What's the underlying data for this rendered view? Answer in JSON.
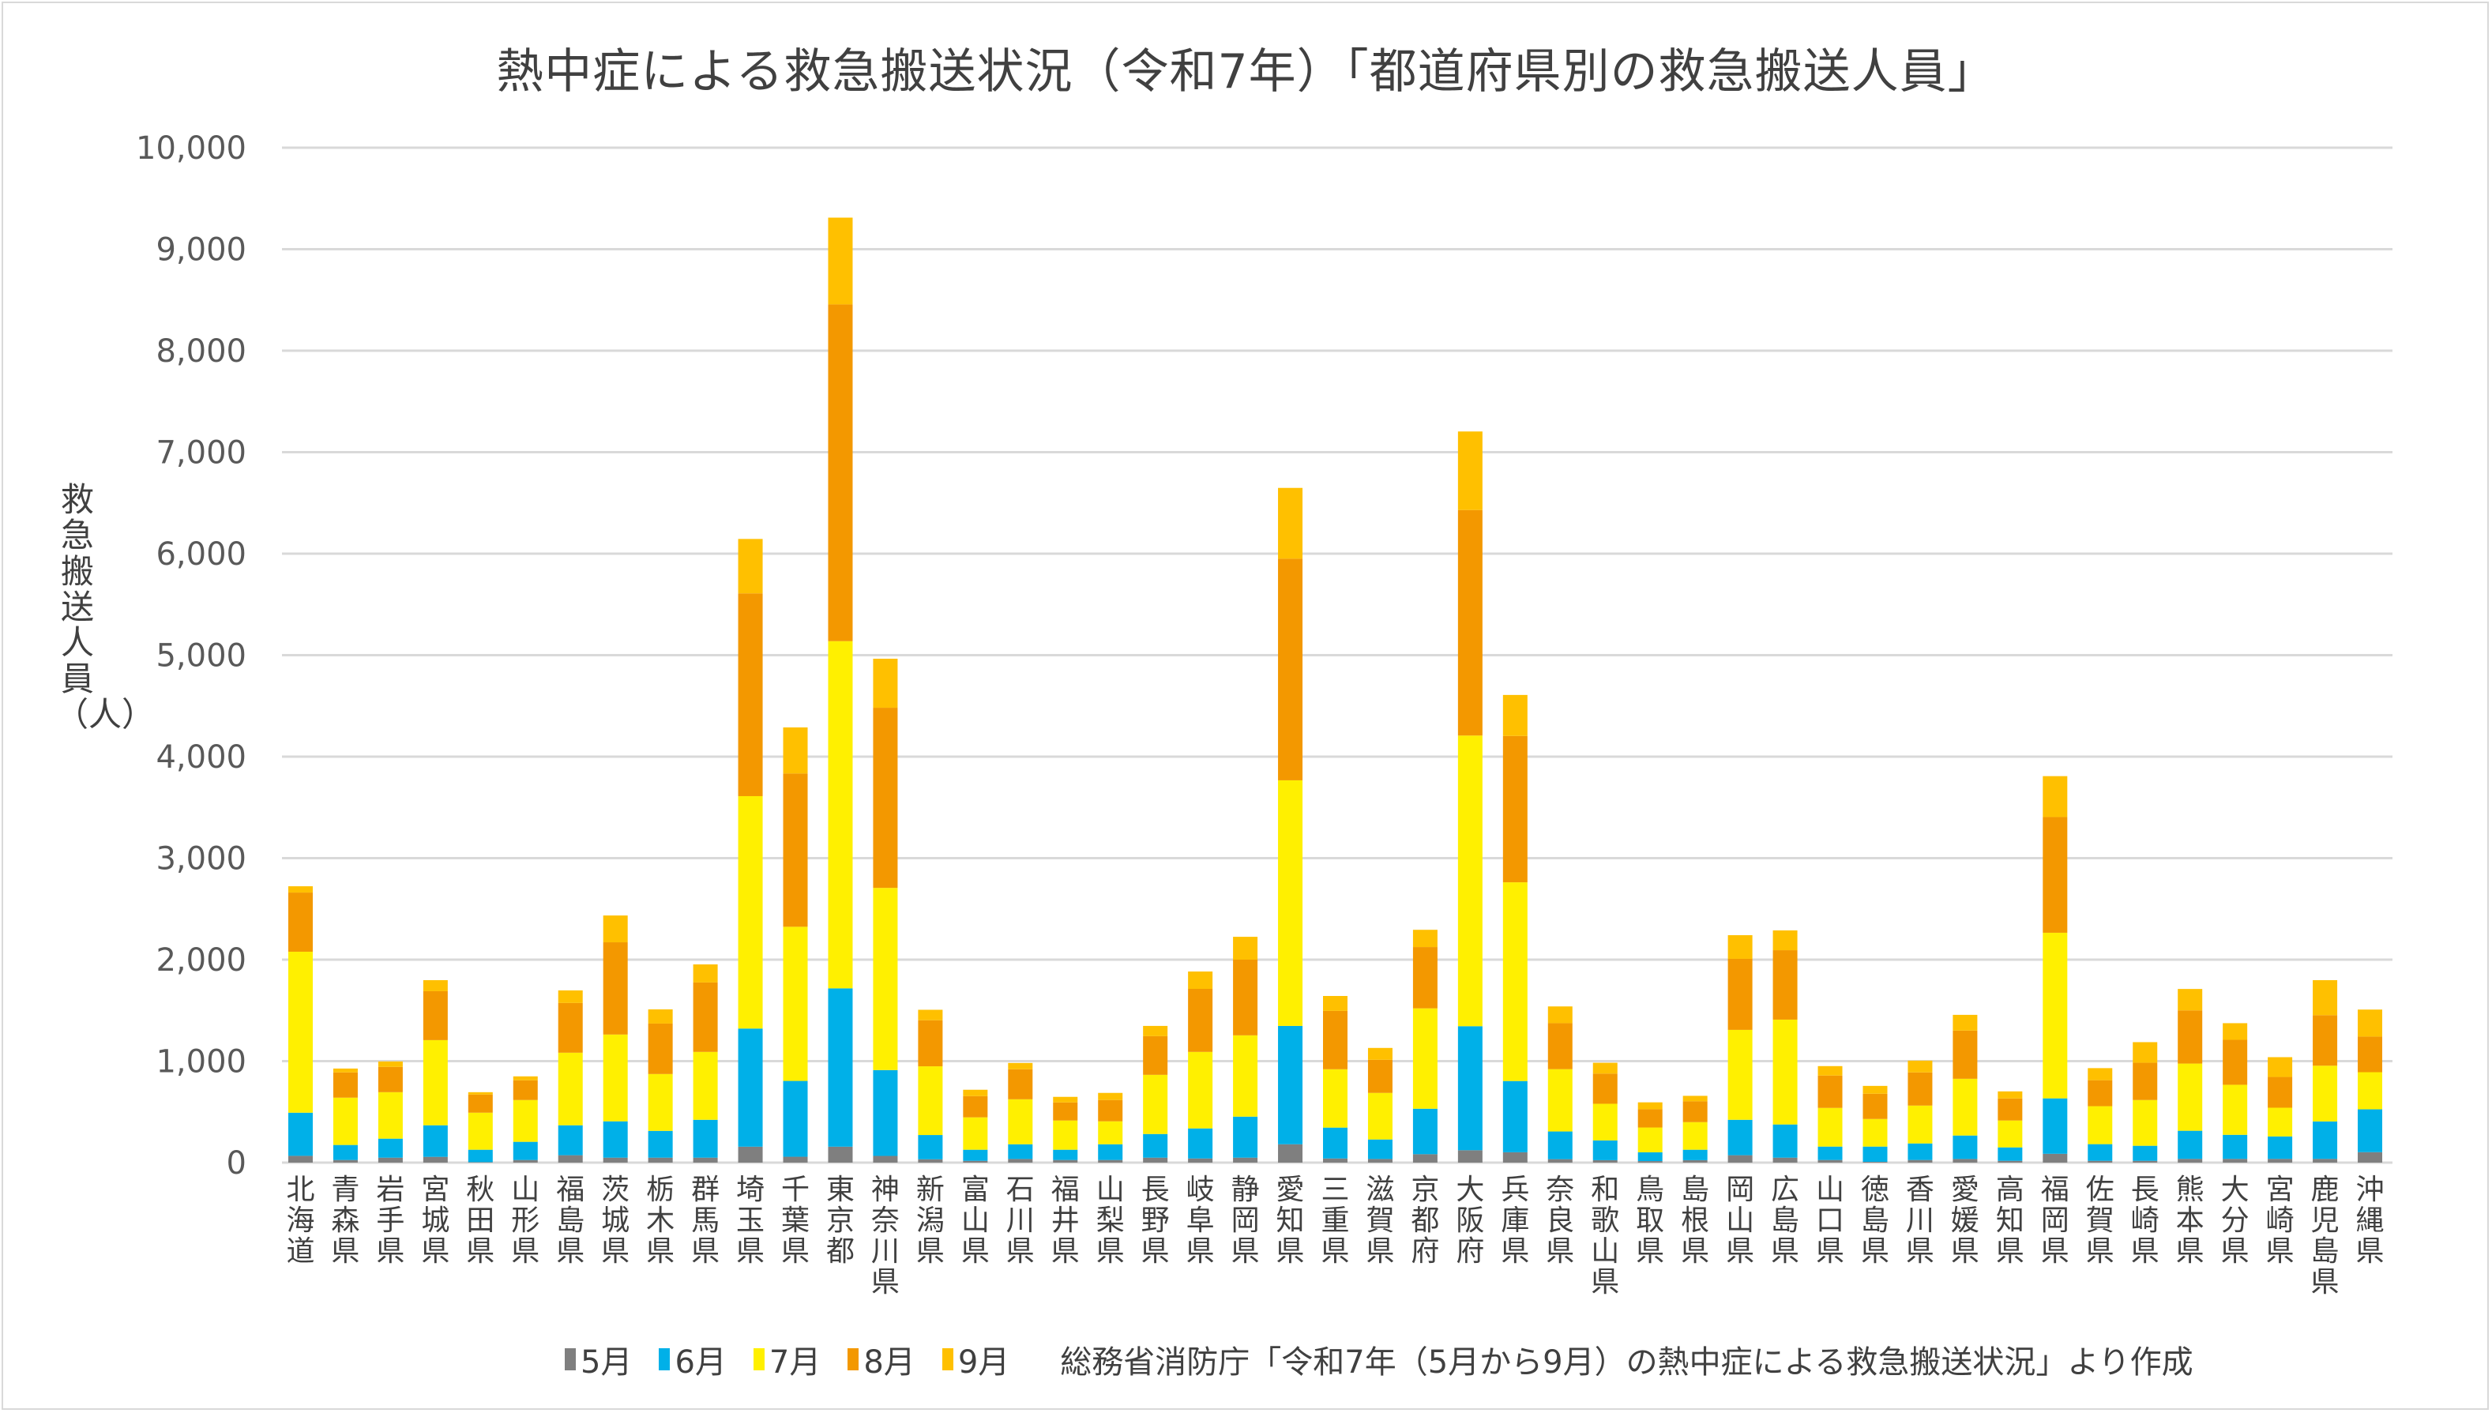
{
  "chart_data": {
    "type": "bar",
    "stacked": true,
    "title": "熱中症による救急搬送状況（令和7年）「都道府県別の救急搬送人員」",
    "ylabel": "救急搬送人員（人）",
    "xlabel": "",
    "ylim": [
      0,
      10000
    ],
    "yticks": [
      "0",
      "1,000",
      "2,000",
      "3,000",
      "4,000",
      "5,000",
      "6,000",
      "7,000",
      "8,000",
      "9,000",
      "10,000"
    ],
    "grid": true,
    "legend_position": "bottom",
    "source_note": "総務省消防庁「令和7年（5月から9月）の熱中症による救急搬送状況」より作成",
    "categories": [
      "北海道",
      "青森県",
      "岩手県",
      "宮城県",
      "秋田県",
      "山形県",
      "福島県",
      "茨城県",
      "栃木県",
      "群馬県",
      "埼玉県",
      "千葉県",
      "東京都",
      "神奈川県",
      "新潟県",
      "富山県",
      "石川県",
      "福井県",
      "山梨県",
      "長野県",
      "岐阜県",
      "静岡県",
      "愛知県",
      "三重県",
      "滋賀県",
      "京都府",
      "大阪府",
      "兵庫県",
      "奈良県",
      "和歌山県",
      "鳥取県",
      "島根県",
      "岡山県",
      "広島県",
      "山口県",
      "徳島県",
      "香川県",
      "愛媛県",
      "高知県",
      "福岡県",
      "佐賀県",
      "長崎県",
      "熊本県",
      "大分県",
      "宮崎県",
      "鹿児島県",
      "沖縄県"
    ],
    "series": [
      {
        "name": "5月",
        "color": "#7f7f7f",
        "values": [
          67,
          26,
          49,
          57,
          5,
          26,
          73,
          49,
          49,
          49,
          157,
          58,
          157,
          66,
          33,
          18,
          36,
          26,
          26,
          49,
          41,
          49,
          181,
          41,
          36,
          83,
          122,
          102,
          34,
          24,
          15,
          24,
          73,
          49,
          26,
          8,
          26,
          36,
          18,
          87,
          18,
          18,
          37,
          37,
          37,
          37,
          103
        ]
      },
      {
        "name": "6月",
        "color": "#00b0e8",
        "values": [
          425,
          148,
          187,
          311,
          122,
          179,
          295,
          358,
          264,
          373,
          1164,
          747,
          1560,
          846,
          239,
          109,
          145,
          101,
          155,
          233,
          296,
          404,
          1166,
          304,
          192,
          448,
          1222,
          702,
          273,
          195,
          87,
          103,
          349,
          327,
          132,
          150,
          163,
          231,
          132,
          546,
          164,
          148,
          277,
          237,
          221,
          369,
          422
        ]
      },
      {
        "name": "7月",
        "color": "#fff000",
        "values": [
          1586,
          466,
          458,
          839,
          365,
          412,
          715,
          855,
          560,
          669,
          2290,
          1519,
          3421,
          1795,
          677,
          319,
          443,
          288,
          226,
          583,
          754,
          801,
          2420,
          575,
          459,
          989,
          2864,
          1958,
          614,
          361,
          244,
          272,
          886,
          1033,
          381,
          272,
          373,
          559,
          265,
          1632,
          374,
          451,
          662,
          493,
          283,
          549,
          366
        ]
      },
      {
        "name": "8月",
        "color": "#f39800",
        "values": [
          583,
          249,
          249,
          482,
          179,
          194,
          490,
          909,
          497,
          684,
          1998,
          1510,
          3318,
          1775,
          454,
          209,
          296,
          178,
          210,
          381,
          621,
          746,
          2184,
          575,
          326,
          604,
          2222,
          1442,
          453,
          297,
          180,
          205,
          700,
          684,
          319,
          249,
          327,
          475,
          217,
          1140,
          256,
          367,
          524,
          443,
          303,
          498,
          351
        ]
      },
      {
        "name": "9月",
        "color": "#ffc000",
        "values": [
          62,
          38,
          54,
          109,
          23,
          39,
          124,
          264,
          140,
          178,
          536,
          454,
          855,
          483,
          103,
          63,
          62,
          55,
          70,
          101,
          171,
          225,
          697,
          147,
          117,
          170,
          774,
          404,
          165,
          107,
          68,
          54,
          233,
          195,
          93,
          77,
          116,
          155,
          70,
          403,
          119,
          203,
          211,
          164,
          195,
          345,
          266
        ]
      }
    ]
  }
}
